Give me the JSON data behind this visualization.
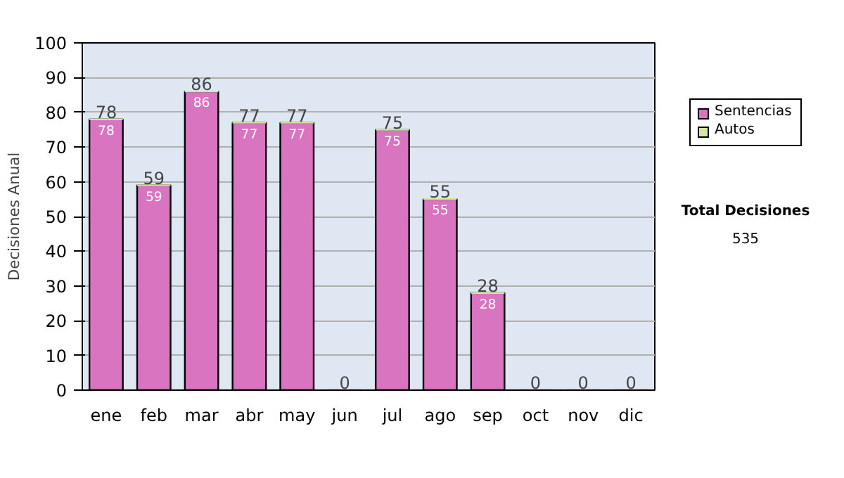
{
  "chart_data": {
    "type": "bar",
    "stacked": true,
    "ylabel": "Decisiones Anual",
    "categories": [
      "ene",
      "feb",
      "mar",
      "abr",
      "may",
      "jun",
      "jul",
      "ago",
      "sep",
      "oct",
      "nov",
      "dic"
    ],
    "series": [
      {
        "name": "Sentencias",
        "color": "#d874c0",
        "values": [
          78,
          59,
          86,
          77,
          77,
          0,
          75,
          55,
          28,
          0,
          0,
          0
        ],
        "value_labels": [
          "78",
          "59",
          "86",
          "77",
          "77",
          null,
          "75",
          "55",
          "28",
          null,
          null,
          null
        ]
      },
      {
        "name": "Autos",
        "color": "#d4e8a0",
        "values": [
          0,
          0,
          0,
          0,
          0,
          0,
          0,
          0,
          0,
          0,
          0,
          0
        ]
      }
    ],
    "totals": [
      "78",
      "59",
      "86",
      "77",
      "77",
      "0",
      "75",
      "55",
      "28",
      "0",
      "0",
      "0"
    ],
    "ylim": [
      0,
      100
    ],
    "yticks": [
      0,
      10,
      20,
      30,
      40,
      50,
      60,
      70,
      80,
      90,
      100
    ],
    "grid": "y",
    "legend": "right",
    "annotations": [
      "Total Decisiones",
      "535"
    ]
  }
}
